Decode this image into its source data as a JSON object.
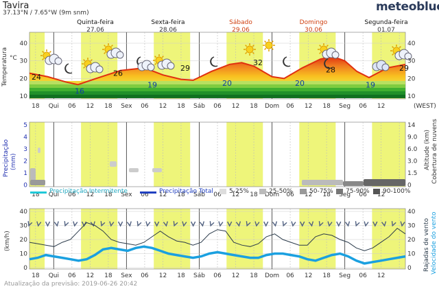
{
  "header": {
    "location": "Tavira",
    "coords": "37.13°N / 7.65°W (9m snm)",
    "brand": "meteoblue"
  },
  "days": [
    {
      "name": "Quinta-feira",
      "date": "27.06",
      "weekend": false
    },
    {
      "name": "Sexta-feira",
      "date": "28.06",
      "weekend": false
    },
    {
      "name": "Sábado",
      "date": "29.06",
      "weekend": true
    },
    {
      "name": "Domingo",
      "date": "30.06",
      "weekend": true
    },
    {
      "name": "Segunda-feira",
      "date": "01.07",
      "weekend": false
    }
  ],
  "time_axis": {
    "ticks": [
      "18",
      "Qui",
      "06",
      "12",
      "18",
      "Sex",
      "06",
      "12",
      "18",
      "Sáb",
      "06",
      "12",
      "18",
      "Dom",
      "06",
      "12",
      "18",
      "Seg",
      "06",
      "12"
    ],
    "timezone": "(WEST)"
  },
  "temperature_panel": {
    "ylabel": "Temperatura",
    "unit": "°C",
    "yticks": [
      "40",
      "30",
      "20",
      "10"
    ],
    "labels": [
      "24",
      "16",
      "26",
      "19",
      "29",
      "20",
      "32",
      "20",
      "28",
      "19",
      "29"
    ],
    "icons": [
      "sun-cloud-icon",
      "moon-icon",
      "sun-cloud-icon",
      "sun-cloud-icon",
      "moon-cloud-icon",
      "sun-cloud-icon",
      "sun-icon",
      "moon-icon",
      "sun-icon",
      "moon-icon",
      "sun-cloud-icon",
      "cloud-icon",
      "moon-icon",
      "sun-cloud-icon"
    ]
  },
  "precip_panel": {
    "ylabel_left": "Precipitação",
    "ylabel_left_unit": "(mm)",
    "ylabel_right": "Altitude (km)",
    "ylabel_right2": "Cobertura de nuvens",
    "yticks_left": [
      "5",
      "4",
      "3",
      "2",
      "1",
      "0"
    ],
    "yticks_right": [
      "14",
      "9.0",
      "6.0",
      "3.0",
      "1.5",
      "0"
    ],
    "legend": {
      "intermittent": "Precipitação Intermitente",
      "total": "Precipitação Total",
      "c1": "5-25%",
      "c2": "25-50%",
      "c3": "50-75%",
      "c4": "75-90%",
      "c5": "90-100%"
    }
  },
  "wind_panel": {
    "ylabel_left": "(km/h)",
    "ylabel_right": "Rajadas de vento",
    "ylabel_right2": "Velocidade do vento",
    "yticks": [
      "40",
      "30",
      "20",
      "10",
      "0"
    ]
  },
  "colors": {
    "day_band": "#eef57a",
    "temp_line": "#e03010",
    "wind_speed": "#1aa0e0",
    "gust": "#2a3a4a",
    "legend_intermittent": "#20c8d8",
    "legend_total": "#2040c0"
  },
  "footer": "Atualização da previsão: 2019-06-26 20:42"
}
